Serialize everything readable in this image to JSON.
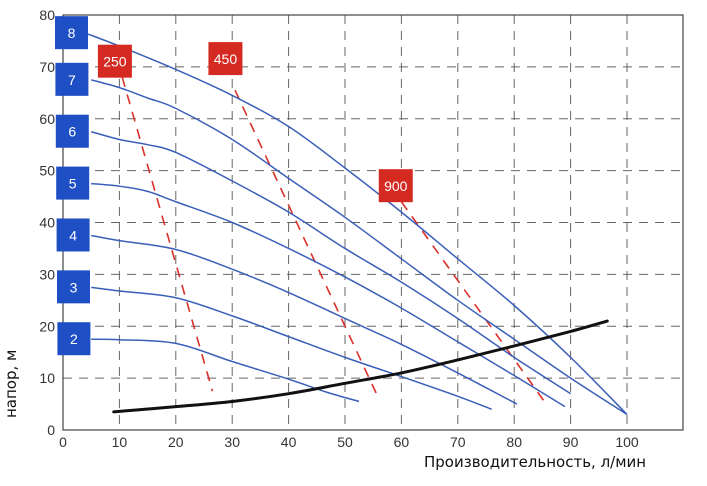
{
  "chart_data": {
    "type": "line",
    "title": "",
    "xlabel": "Производительность, л/мин",
    "ylabel": "напор, м",
    "xlim": [
      0,
      110
    ],
    "ylim": [
      0,
      80
    ],
    "xticks": [
      0,
      10,
      20,
      30,
      40,
      50,
      60,
      70,
      80,
      90,
      100
    ],
    "yticks": [
      0,
      10,
      20,
      30,
      40,
      50,
      60,
      70,
      80
    ],
    "grid": true,
    "grid_style": "dashed",
    "colors": {
      "pump_curves": "#3a5fb8",
      "label_box_blue": "#1f4fc4",
      "iso_lines": "#d9302a",
      "label_box_red": "#d42a22",
      "system_curve": "#111111",
      "grid": "#666666"
    },
    "series": [
      {
        "name": "2",
        "points": [
          [
            5,
            17.5
          ],
          [
            10,
            17.4
          ],
          [
            20,
            16.7
          ],
          [
            30,
            13.2
          ],
          [
            40,
            9.8
          ],
          [
            47,
            7.2
          ],
          [
            52.5,
            5.5
          ]
        ]
      },
      {
        "name": "3",
        "points": [
          [
            5,
            27.5
          ],
          [
            10,
            26.8
          ],
          [
            20,
            25.5
          ],
          [
            30,
            22
          ],
          [
            40,
            18
          ],
          [
            50,
            14
          ],
          [
            60,
            10.3
          ],
          [
            70,
            6.5
          ],
          [
            76,
            4
          ]
        ]
      },
      {
        "name": "4",
        "points": [
          [
            5,
            37.5
          ],
          [
            10,
            36.5
          ],
          [
            20,
            34.8
          ],
          [
            30,
            31
          ],
          [
            40,
            26.5
          ],
          [
            50,
            21.5
          ],
          [
            60,
            16.5
          ],
          [
            70,
            11
          ],
          [
            80.5,
            5
          ]
        ]
      },
      {
        "name": "5",
        "points": [
          [
            5,
            47.5
          ],
          [
            10,
            47
          ],
          [
            15,
            46
          ],
          [
            20,
            44
          ],
          [
            30,
            40
          ],
          [
            40,
            35
          ],
          [
            50,
            29.5
          ],
          [
            60,
            23.5
          ],
          [
            70,
            17
          ],
          [
            80,
            10.5
          ],
          [
            89,
            4.5
          ]
        ]
      },
      {
        "name": "6",
        "points": [
          [
            5,
            57.5
          ],
          [
            10,
            56
          ],
          [
            15,
            55
          ],
          [
            20,
            53.5
          ],
          [
            30,
            48
          ],
          [
            40,
            42
          ],
          [
            50,
            35
          ],
          [
            60,
            28.5
          ],
          [
            70,
            21.5
          ],
          [
            80,
            14
          ],
          [
            90,
            7
          ]
        ]
      },
      {
        "name": "7",
        "points": [
          [
            5,
            67.5
          ],
          [
            10,
            66
          ],
          [
            15,
            64
          ],
          [
            20,
            62
          ],
          [
            30,
            56
          ],
          [
            40,
            48.5
          ],
          [
            50,
            41
          ],
          [
            60,
            33
          ],
          [
            70,
            25
          ],
          [
            80,
            17.5
          ],
          [
            90,
            10
          ],
          [
            100,
            3
          ]
        ]
      },
      {
        "name": "8",
        "points": [
          [
            4,
            76.5
          ],
          [
            10,
            74
          ],
          [
            20,
            69.5
          ],
          [
            30,
            64.5
          ],
          [
            40,
            58.5
          ],
          [
            50,
            50.5
          ],
          [
            60,
            42
          ],
          [
            70,
            33
          ],
          [
            80,
            24
          ],
          [
            90,
            14
          ],
          [
            100,
            3
          ]
        ]
      }
    ],
    "iso_lines": [
      {
        "name": "250",
        "points": [
          [
            10.5,
            68
          ],
          [
            26.5,
            7.5
          ]
        ],
        "label_at": [
          9.2,
          71
        ]
      },
      {
        "name": "450",
        "points": [
          [
            30.5,
            65.5
          ],
          [
            56,
            6
          ]
        ],
        "label_at": [
          28.8,
          71.5
        ]
      },
      {
        "name": "900",
        "points": [
          [
            60,
            44
          ],
          [
            86,
            4.5
          ]
        ],
        "label_at": [
          59,
          47
        ]
      }
    ],
    "system_curve": {
      "points": [
        [
          9,
          3.5
        ],
        [
          20,
          4.5
        ],
        [
          30,
          5.5
        ],
        [
          40,
          7
        ],
        [
          50,
          9
        ],
        [
          60,
          11
        ],
        [
          70,
          13.5
        ],
        [
          80,
          16.2
        ],
        [
          90,
          19
        ],
        [
          96.5,
          21
        ]
      ]
    }
  }
}
